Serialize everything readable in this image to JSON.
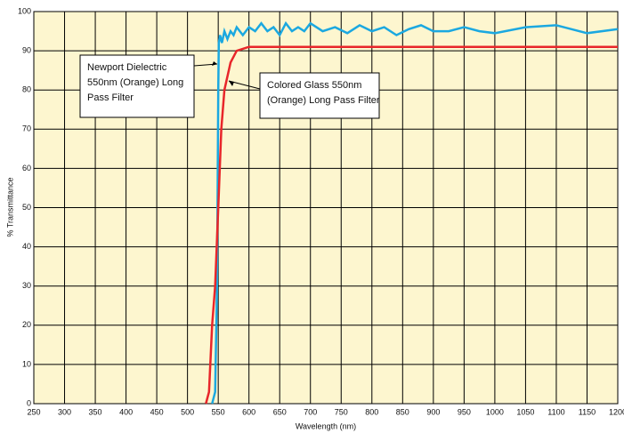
{
  "chart_data": {
    "type": "line",
    "xlabel": "Wavelength (nm)",
    "ylabel": "% Transmittance",
    "xlim": [
      250,
      1200
    ],
    "xticks": [
      250,
      300,
      350,
      400,
      450,
      500,
      550,
      600,
      650,
      700,
      750,
      800,
      850,
      900,
      950,
      1000,
      1050,
      1100,
      1150,
      1200
    ],
    "ylim": [
      0,
      100
    ],
    "yticks": [
      0,
      10,
      20,
      30,
      40,
      50,
      60,
      70,
      80,
      90,
      100
    ],
    "grid": true,
    "background": "#fdf6cf",
    "series": [
      {
        "name": "Newport Dielectric 550nm (Orange) Long Pass Filter",
        "color": "#1ba8e0",
        "x": [
          540,
          545,
          548,
          550,
          551,
          553,
          556,
          560,
          565,
          570,
          575,
          580,
          590,
          600,
          610,
          620,
          630,
          640,
          650,
          660,
          670,
          680,
          690,
          700,
          720,
          740,
          760,
          780,
          800,
          820,
          840,
          860,
          880,
          900,
          925,
          950,
          975,
          1000,
          1050,
          1100,
          1150,
          1200
        ],
        "values": [
          0,
          3,
          30,
          80,
          92,
          94,
          92,
          95,
          93,
          95,
          94,
          96,
          94,
          96,
          95,
          97,
          95,
          96,
          94,
          97,
          95,
          96,
          95,
          97,
          95,
          96,
          94.5,
          96.5,
          95,
          96,
          94,
          95.5,
          96.5,
          95,
          95,
          96,
          95,
          94.5,
          96,
          96.5,
          94.5,
          95.5
        ]
      },
      {
        "name": "Colored Glass 550nm (Orange) Long Pass Filter",
        "color": "#e8262a",
        "x": [
          530,
          535,
          540,
          545,
          550,
          555,
          560,
          570,
          580,
          600,
          700,
          800,
          1200
        ],
        "values": [
          0,
          3,
          20,
          30,
          50,
          70,
          80,
          87,
          90,
          91,
          91,
          91,
          91
        ]
      }
    ],
    "annotations": [
      {
        "lines": [
          "Newport Dielectric",
          "550nm (Orange) Long",
          "Pass Filter"
        ]
      },
      {
        "lines": [
          "Colored Glass 550nm",
          "(Orange) Long Pass Filter"
        ]
      }
    ]
  }
}
